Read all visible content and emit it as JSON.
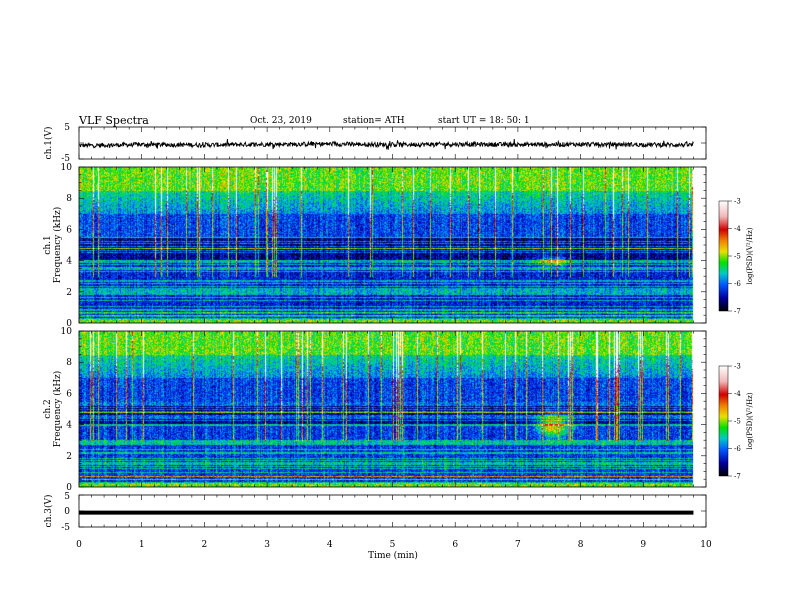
{
  "header": {
    "title": "VLF  Spectra",
    "date": "Oct. 23, 2019",
    "station": "station= ATH",
    "start": "start  UT  =    18: 50: 1"
  },
  "colors": {
    "spectrogram_scale": [
      "#ffffff",
      "#d00000",
      "#f08000",
      "#e8e000",
      "#00e000",
      "#00c8c8",
      "#0058ff",
      "#0000a0",
      "#000000"
    ]
  },
  "chart_data": [
    {
      "type": "line",
      "title": "",
      "ylabel": "ch.1(V)",
      "xlabel": "",
      "xlim": [
        0,
        10
      ],
      "ylim": [
        -5,
        5
      ],
      "yticks": [
        "5",
        "-5"
      ],
      "series": [
        {
          "x": [
            0.0,
            1.0,
            2.0,
            3.0,
            4.0,
            5.0,
            6.0,
            7.0,
            8.0,
            9.0,
            9.8
          ],
          "values": [
            -0.8,
            -0.5,
            -0.6,
            -0.4,
            -0.3,
            -0.5,
            -0.4,
            -0.5,
            -0.4,
            -0.5,
            -0.6
          ]
        }
      ]
    },
    {
      "type": "heatmap",
      "title": "",
      "ylabel": "ch.1\nFrequency (kHz)",
      "xlabel": "",
      "xlim": [
        0,
        10
      ],
      "ylim": [
        0,
        10
      ],
      "yticks": [
        "0",
        "2",
        "4",
        "6",
        "8",
        "10"
      ],
      "colorbar": {
        "label": "log(PSD)(V²/Hz)",
        "ticks": [
          "-3",
          "-4",
          "-5",
          "-6",
          "-7"
        ]
      }
    },
    {
      "type": "heatmap",
      "title": "",
      "ylabel": "ch.2\nFrequency (kHz)",
      "xlabel": "",
      "xlim": [
        0,
        10
      ],
      "ylim": [
        0,
        10
      ],
      "yticks": [
        "0",
        "2",
        "4",
        "6",
        "8",
        "10"
      ],
      "colorbar": {
        "label": "log(PSD)(V²/Hz)",
        "ticks": [
          "-3",
          "-4",
          "-5",
          "-6",
          "-7"
        ]
      }
    },
    {
      "type": "line",
      "title": "",
      "ylabel": "ch.3(V)",
      "xlabel": "Time  (min)",
      "xlim": [
        0,
        10
      ],
      "ylim": [
        -5,
        5
      ],
      "yticks": [
        "5",
        "0",
        "-5"
      ],
      "xticks": [
        "0",
        "1",
        "2",
        "3",
        "4",
        "5",
        "6",
        "7",
        "8",
        "9",
        "10"
      ],
      "series": [
        {
          "x": [
            0.0,
            9.8
          ],
          "values": [
            -0.5,
            -0.5
          ]
        }
      ]
    }
  ]
}
